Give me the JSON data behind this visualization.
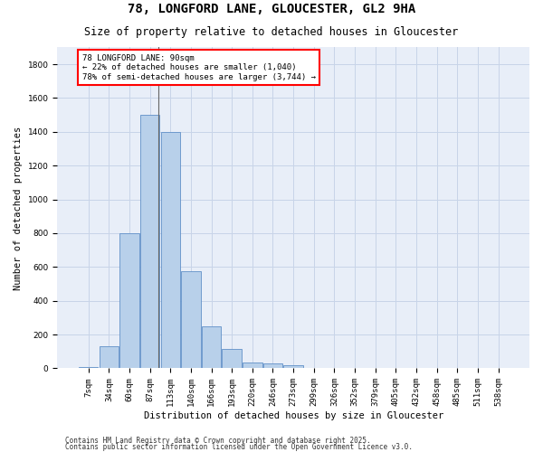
{
  "title_line1": "78, LONGFORD LANE, GLOUCESTER, GL2 9HA",
  "title_line2": "Size of property relative to detached houses in Gloucester",
  "xlabel": "Distribution of detached houses by size in Gloucester",
  "ylabel": "Number of detached properties",
  "categories": [
    "7sqm",
    "34sqm",
    "60sqm",
    "87sqm",
    "113sqm",
    "140sqm",
    "166sqm",
    "193sqm",
    "220sqm",
    "246sqm",
    "273sqm",
    "299sqm",
    "326sqm",
    "352sqm",
    "379sqm",
    "405sqm",
    "432sqm",
    "458sqm",
    "485sqm",
    "511sqm",
    "538sqm"
  ],
  "values": [
    10,
    130,
    800,
    1500,
    1400,
    575,
    250,
    115,
    35,
    30,
    20,
    0,
    0,
    0,
    0,
    0,
    0,
    0,
    0,
    0,
    0
  ],
  "bar_color": "#b8d0ea",
  "bar_edge_color": "#6090c8",
  "grid_color": "#c8d4e8",
  "bg_color": "#e8eef8",
  "annotation_text": "78 LONGFORD LANE: 90sqm\n← 22% of detached houses are smaller (1,040)\n78% of semi-detached houses are larger (3,744) →",
  "ylim": [
    0,
    1900
  ],
  "yticks": [
    0,
    200,
    400,
    600,
    800,
    1000,
    1200,
    1400,
    1600,
    1800
  ],
  "vline_xindex": 3.42,
  "footer_line1": "Contains HM Land Registry data © Crown copyright and database right 2025.",
  "footer_line2": "Contains public sector information licensed under the Open Government Licence v3.0.",
  "title_fontsize": 10,
  "subtitle_fontsize": 8.5,
  "axis_label_fontsize": 7.5,
  "tick_fontsize": 6.5,
  "annotation_fontsize": 6.5,
  "footer_fontsize": 5.5
}
